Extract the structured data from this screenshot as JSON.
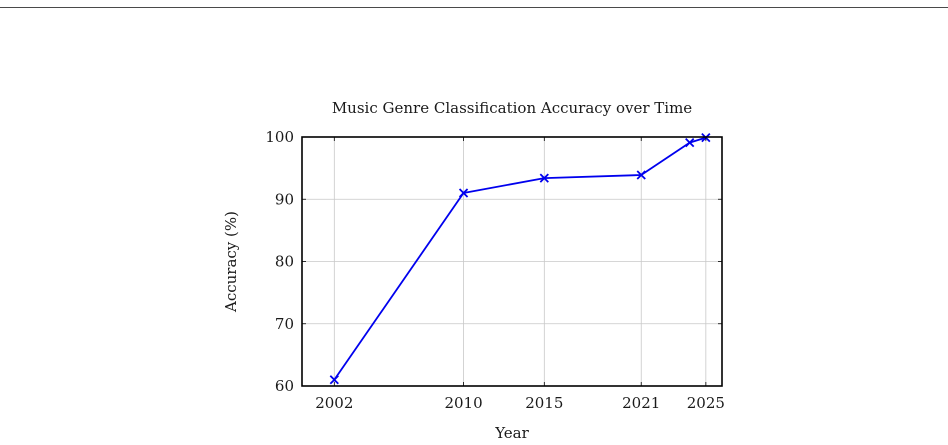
{
  "chart_data": {
    "type": "line",
    "title": "Music Genre Classification Accuracy over Time",
    "xlabel": "Year",
    "ylabel": "Accuracy (%)",
    "xlim": [
      2000,
      2026
    ],
    "ylim": [
      60,
      100
    ],
    "x_ticks": [
      2002,
      2010,
      2015,
      2021,
      2025
    ],
    "y_ticks": [
      60,
      70,
      80,
      90,
      100
    ],
    "grid": true,
    "series": [
      {
        "color": "#0000ee",
        "marker": "x",
        "points": [
          {
            "x": 2002,
            "y": 61
          },
          {
            "x": 2010,
            "y": 91
          },
          {
            "x": 2015,
            "y": 93.4
          },
          {
            "x": 2021,
            "y": 93.9
          },
          {
            "x": 2024,
            "y": 99.1
          },
          {
            "x": 2025,
            "y": 99.9
          }
        ]
      }
    ]
  }
}
